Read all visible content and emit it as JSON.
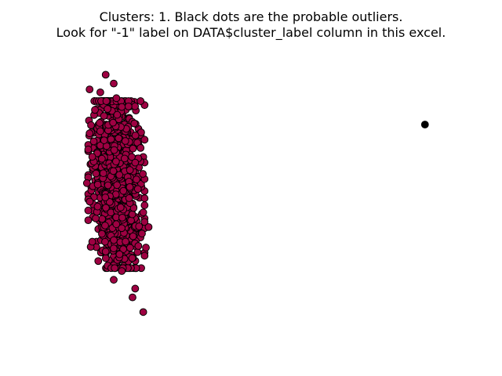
{
  "chart_data": {
    "type": "scatter",
    "title_lines": [
      "Clusters: 1. Black dots are the probable outliers.",
      "Look for \"-1\" label on DATA$cluster_label column in this excel."
    ],
    "xlabel": "",
    "ylabel": "",
    "axes_visible": false,
    "grid": false,
    "legend": "none",
    "series": [
      {
        "label": "0",
        "color": "#9e0142",
        "edgecolor": "#000000",
        "seed": 7,
        "count": 1150,
        "points": [
          [
            -0.9,
            3.5
          ],
          [
            -0.6,
            3.2
          ],
          [
            -1.1,
            2.9
          ],
          [
            -0.5,
            2.7
          ],
          [
            -0.3,
            2.4
          ],
          [
            -1.5,
            1.5
          ],
          [
            0.4,
            1.0
          ],
          [
            -1.4,
            0.7
          ],
          [
            0.2,
            0.5
          ],
          [
            -1.6,
            -0.2
          ],
          [
            0.3,
            -0.4
          ],
          [
            -1.2,
            -1.0
          ],
          [
            0.5,
            -1.2
          ],
          [
            -0.3,
            -3.2
          ],
          [
            -0.6,
            -3.5
          ],
          [
            0.2,
            -3.8
          ],
          [
            0.1,
            -4.1
          ],
          [
            0.5,
            -4.6
          ],
          [
            0.7,
            -1.7
          ],
          [
            -1.4,
            -2.2
          ],
          [
            0.6,
            -2.4
          ],
          [
            -1.3,
            2.3
          ],
          [
            0.4,
            2.6
          ],
          [
            -1.5,
            3.0
          ]
        ]
      },
      {
        "label": "-1",
        "color": "#000000",
        "edgecolor": "#000000",
        "points": [
          [
            11.0,
            1.8
          ]
        ]
      }
    ],
    "xlim": [
      -2.5,
      12
    ],
    "ylim": [
      -5.5,
      4.5
    ]
  }
}
